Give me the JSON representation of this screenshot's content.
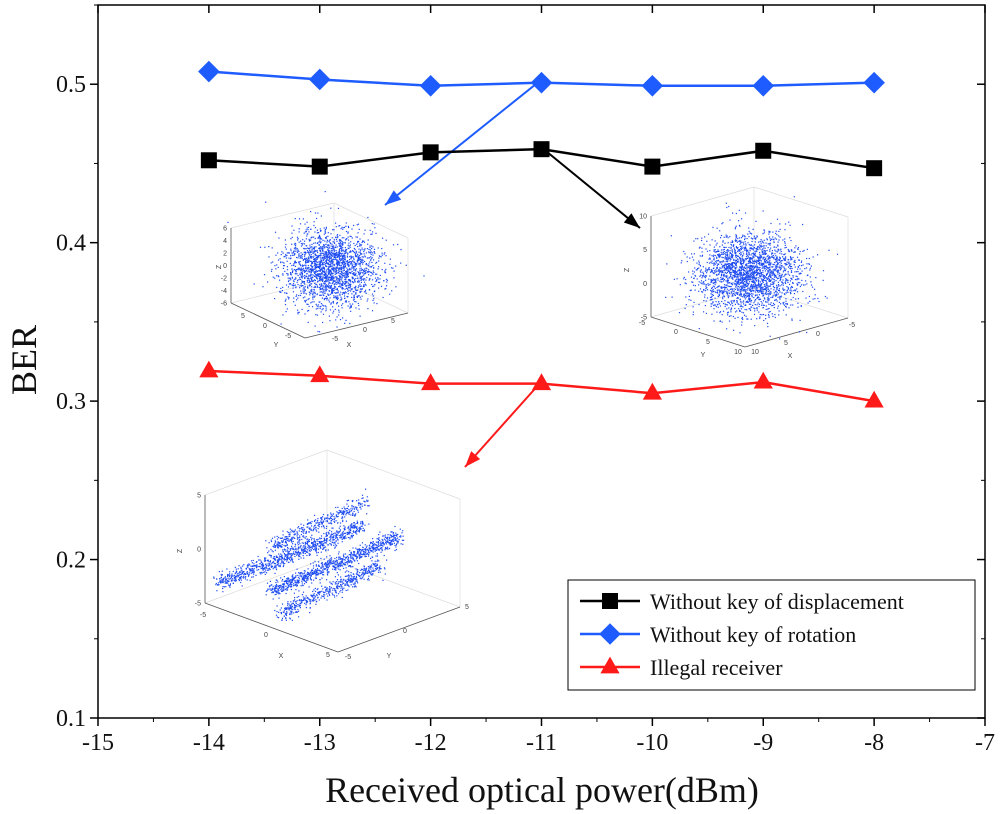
{
  "chart_data": {
    "type": "line",
    "title": "",
    "xlabel": "Received optical power(dBm)",
    "ylabel": "BER",
    "xlim": [
      -15,
      -7
    ],
    "ylim": [
      0.1,
      0.55
    ],
    "xticks": [
      "-15",
      "-14",
      "-13",
      "-12",
      "-11",
      "-10",
      "-9",
      "-8",
      "-7"
    ],
    "yticks": [
      "0.1",
      "0.2",
      "0.3",
      "0.4",
      "0.5"
    ],
    "x": [
      -14,
      -13,
      -12,
      -11,
      -10,
      -9,
      -8
    ],
    "series": [
      {
        "name": "Without key of displacement",
        "color": "#000000",
        "marker": "square",
        "values": [
          0.452,
          0.448,
          0.457,
          0.459,
          0.448,
          0.458,
          0.447
        ]
      },
      {
        "name": "Without key of rotation",
        "color": "#1f5cff",
        "marker": "diamond",
        "values": [
          0.508,
          0.503,
          0.499,
          0.501,
          0.499,
          0.499,
          0.501
        ]
      },
      {
        "name": "Illegal receiver",
        "color": "#ff1a1a",
        "marker": "triangle",
        "values": [
          0.319,
          0.316,
          0.311,
          0.311,
          0.305,
          0.312,
          0.3
        ]
      }
    ],
    "legend_position": "bottom-right",
    "insets": [
      {
        "for_series": "Without key of rotation",
        "zticks": [
          "6",
          "4",
          "2",
          "0",
          "-2",
          "-4",
          "-6"
        ],
        "yticks": [
          "5",
          "0",
          "-5"
        ],
        "xticks": [
          "-5",
          "0",
          "5"
        ],
        "xlabel": "X",
        "ylabel": "Y",
        "zlabel": "Z"
      },
      {
        "for_series": "Without key of displacement",
        "zticks": [
          "10",
          "5",
          "0",
          "-5"
        ],
        "yticks": [
          "-5",
          "0",
          "5",
          "10"
        ],
        "xticks": [
          "10",
          "5",
          "0",
          "-5"
        ],
        "xlabel": "X",
        "ylabel": "Y",
        "zlabel": "Z"
      },
      {
        "for_series": "Illegal receiver",
        "zticks": [
          "5",
          "0",
          "-5"
        ],
        "xticks": [
          "-5",
          "0",
          "5"
        ],
        "yticks": [
          "-5",
          "0",
          "5"
        ],
        "xlabel": "X",
        "ylabel": "Y",
        "zlabel": "Z"
      }
    ]
  }
}
